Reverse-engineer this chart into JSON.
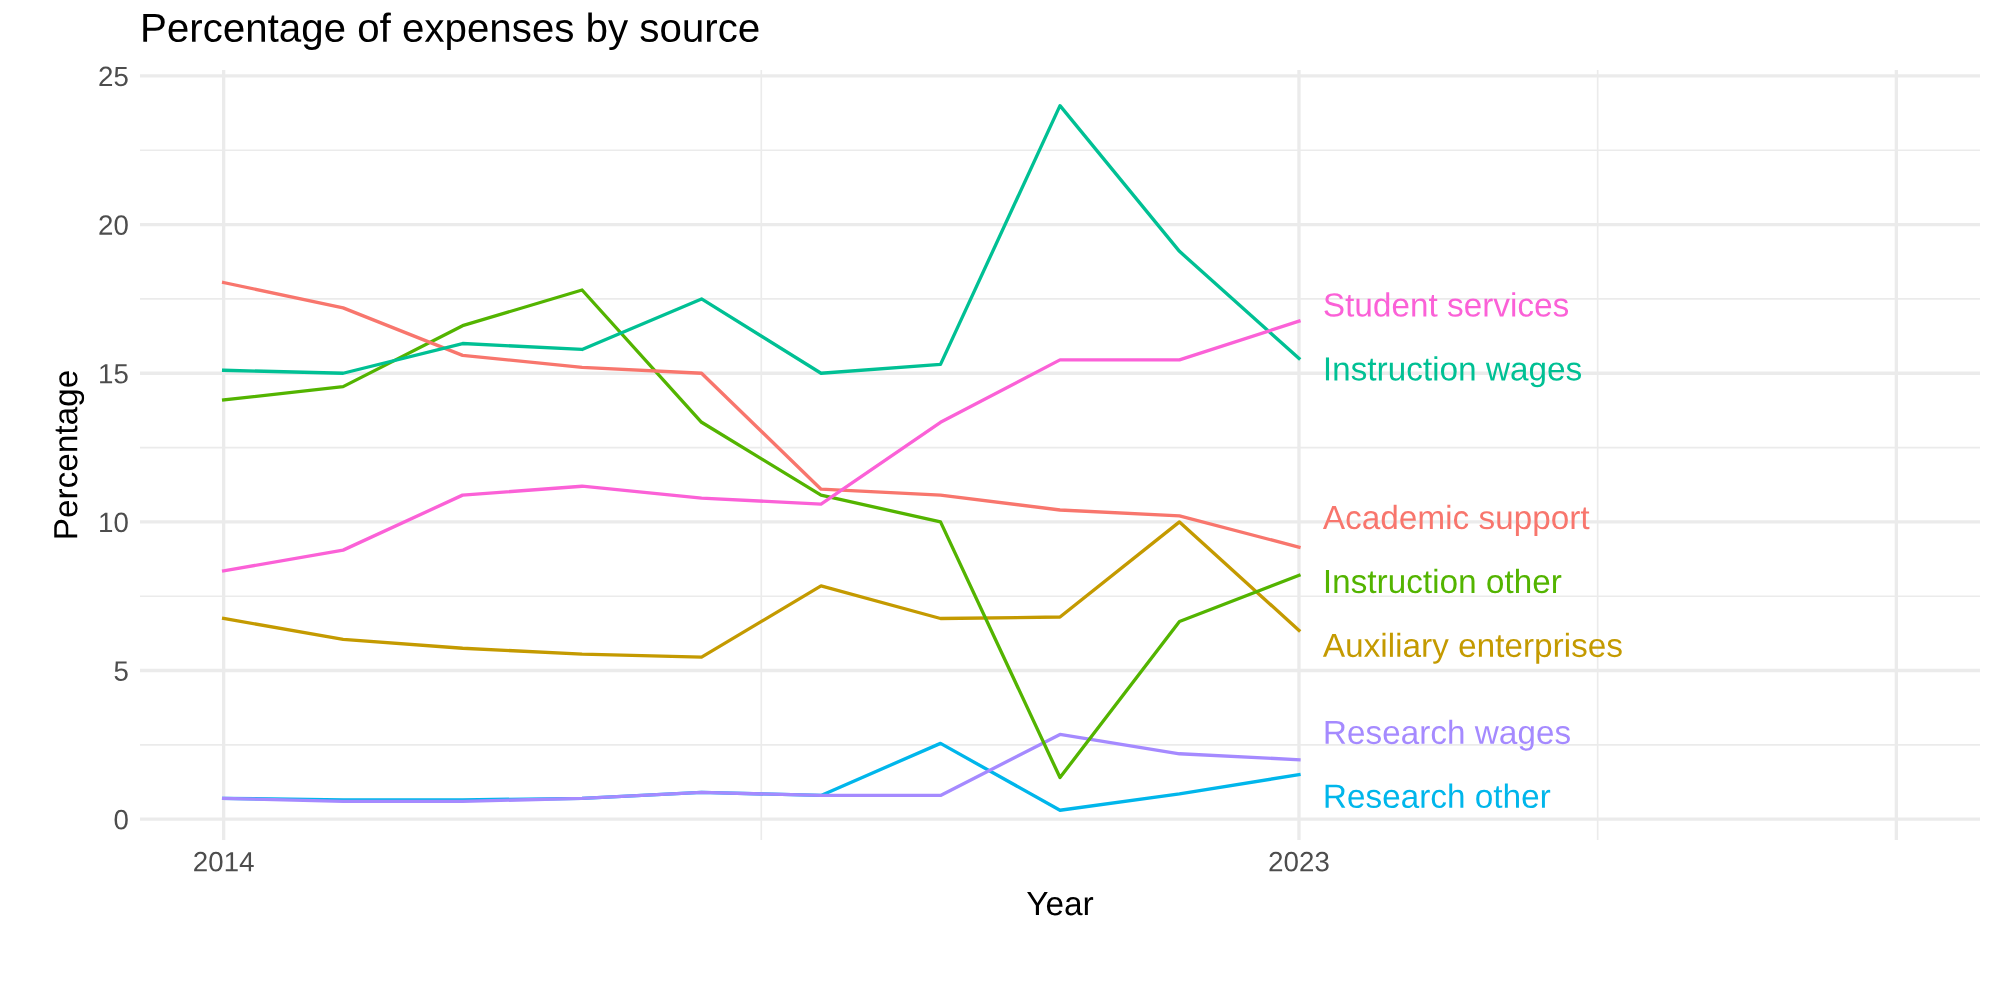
{
  "chart_data": {
    "type": "line",
    "title": "Percentage of expenses by source",
    "xlabel": "Year",
    "ylabel": "Percentage",
    "x": [
      2014,
      2015,
      2016,
      2017,
      2018,
      2019,
      2020,
      2021,
      2022,
      2023
    ],
    "series": [
      {
        "name": "Student services",
        "color": "#fb61d7",
        "values": [
          8.35,
          9.05,
          10.9,
          11.2,
          10.8,
          10.6,
          13.35,
          15.45,
          15.45,
          16.75
        ]
      },
      {
        "name": "Instruction wages",
        "color": "#00c094",
        "values": [
          15.1,
          15.0,
          16.0,
          15.8,
          17.5,
          15.0,
          15.3,
          24.0,
          19.1,
          15.5
        ]
      },
      {
        "name": "Academic support",
        "color": "#f8766d",
        "values": [
          18.05,
          17.2,
          15.6,
          15.2,
          15.0,
          11.1,
          10.9,
          10.4,
          10.2,
          9.15
        ]
      },
      {
        "name": "Instruction other",
        "color": "#53b400",
        "values": [
          14.1,
          14.55,
          16.6,
          17.8,
          13.35,
          10.9,
          10.0,
          1.4,
          6.65,
          8.2
        ]
      },
      {
        "name": "Auxiliary enterprises",
        "color": "#c49a00",
        "values": [
          6.75,
          6.05,
          5.75,
          5.55,
          5.45,
          7.85,
          6.75,
          6.8,
          10.0,
          6.35
        ]
      },
      {
        "name": "Research wages",
        "color": "#a58aff",
        "values": [
          0.7,
          0.6,
          0.6,
          0.7,
          0.9,
          0.8,
          0.8,
          2.85,
          2.2,
          2.0
        ]
      },
      {
        "name": "Research other",
        "color": "#00b6eb",
        "values": [
          0.7,
          0.65,
          0.65,
          0.7,
          0.9,
          0.8,
          2.55,
          0.3,
          0.85,
          1.5
        ]
      }
    ],
    "xlim": [
      2013.3,
      2028.7
    ],
    "xticks": [
      2014,
      2023,
      {
        "value": 2028,
        "label": null
      }
    ],
    "ylim": [
      -0.7,
      25.2
    ],
    "yticks": [
      0,
      5,
      10,
      15,
      20,
      25
    ],
    "grid": true,
    "legend": false,
    "marker": "none",
    "line_style": "solid"
  }
}
